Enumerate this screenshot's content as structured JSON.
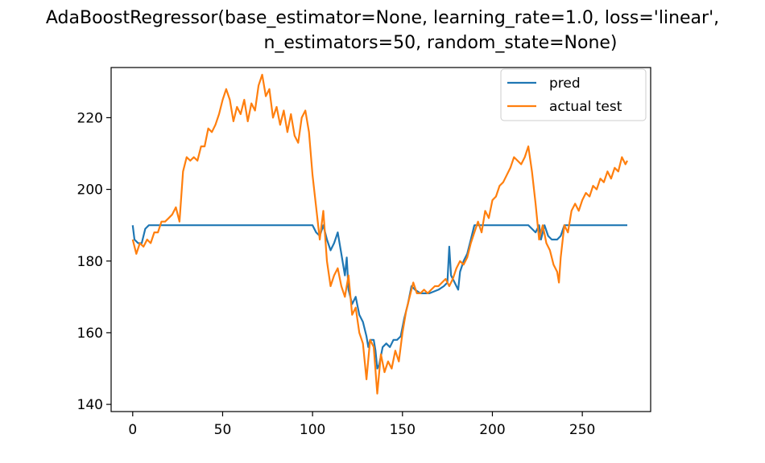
{
  "chart_data": {
    "type": "line",
    "title_line1": "AdaBoostRegressor(base_estimator=None, learning_rate=1.0, loss='linear',",
    "title_line2": "n_estimators=50, random_state=None)",
    "xlabel": "",
    "ylabel": "",
    "xlim": [
      -12,
      288
    ],
    "ylim": [
      138,
      234
    ],
    "xticks": [
      0,
      50,
      100,
      150,
      200,
      250
    ],
    "yticks": [
      140,
      160,
      180,
      200,
      220
    ],
    "grid": false,
    "legend_position": "top-right",
    "series": [
      {
        "name": "pred",
        "color": "#1f77b4",
        "points": [
          [
            0,
            190
          ],
          [
            1,
            186
          ],
          [
            3,
            185
          ],
          [
            5,
            185
          ],
          [
            7,
            189
          ],
          [
            9,
            190
          ],
          [
            12,
            190
          ],
          [
            30,
            190
          ],
          [
            60,
            190
          ],
          [
            90,
            190
          ],
          [
            100,
            190
          ],
          [
            102,
            188
          ],
          [
            104,
            187
          ],
          [
            106,
            190
          ],
          [
            108,
            186
          ],
          [
            110,
            183
          ],
          [
            112,
            185
          ],
          [
            114,
            188
          ],
          [
            116,
            182
          ],
          [
            118,
            176
          ],
          [
            119,
            181
          ],
          [
            120,
            172
          ],
          [
            122,
            168
          ],
          [
            124,
            170
          ],
          [
            126,
            165
          ],
          [
            128,
            163
          ],
          [
            130,
            159
          ],
          [
            131,
            156
          ],
          [
            132,
            158
          ],
          [
            134,
            158
          ],
          [
            135,
            155
          ],
          [
            136,
            150
          ],
          [
            137,
            151
          ],
          [
            139,
            156
          ],
          [
            141,
            157
          ],
          [
            143,
            156
          ],
          [
            145,
            158
          ],
          [
            147,
            158
          ],
          [
            149,
            159
          ],
          [
            151,
            164
          ],
          [
            153,
            168
          ],
          [
            155,
            173
          ],
          [
            157,
            172
          ],
          [
            160,
            171
          ],
          [
            165,
            171
          ],
          [
            170,
            172
          ],
          [
            173,
            173
          ],
          [
            175,
            174
          ],
          [
            176,
            184
          ],
          [
            177,
            176
          ],
          [
            179,
            174
          ],
          [
            180,
            173
          ],
          [
            181,
            172
          ],
          [
            182,
            177
          ],
          [
            184,
            180
          ],
          [
            186,
            182
          ],
          [
            188,
            186
          ],
          [
            190,
            190
          ],
          [
            200,
            190
          ],
          [
            210,
            190
          ],
          [
            220,
            190
          ],
          [
            222,
            189
          ],
          [
            224,
            188
          ],
          [
            226,
            190
          ],
          [
            227,
            186
          ],
          [
            229,
            190
          ],
          [
            231,
            187
          ],
          [
            233,
            186
          ],
          [
            236,
            186
          ],
          [
            238,
            187
          ],
          [
            240,
            190
          ],
          [
            250,
            190
          ],
          [
            260,
            190
          ],
          [
            270,
            190
          ],
          [
            275,
            190
          ]
        ]
      },
      {
        "name": "actual test",
        "color": "#ff7f0e",
        "points": [
          [
            0,
            186
          ],
          [
            2,
            182
          ],
          [
            4,
            185
          ],
          [
            6,
            184
          ],
          [
            8,
            186
          ],
          [
            10,
            185
          ],
          [
            12,
            188
          ],
          [
            14,
            188
          ],
          [
            16,
            191
          ],
          [
            18,
            191
          ],
          [
            20,
            192
          ],
          [
            22,
            193
          ],
          [
            24,
            195
          ],
          [
            26,
            191
          ],
          [
            28,
            205
          ],
          [
            30,
            209
          ],
          [
            32,
            208
          ],
          [
            34,
            209
          ],
          [
            36,
            208
          ],
          [
            38,
            212
          ],
          [
            40,
            212
          ],
          [
            42,
            217
          ],
          [
            44,
            216
          ],
          [
            46,
            218
          ],
          [
            48,
            221
          ],
          [
            50,
            225
          ],
          [
            52,
            228
          ],
          [
            54,
            225
          ],
          [
            56,
            219
          ],
          [
            58,
            223
          ],
          [
            60,
            221
          ],
          [
            62,
            225
          ],
          [
            64,
            219
          ],
          [
            66,
            224
          ],
          [
            68,
            222
          ],
          [
            70,
            229
          ],
          [
            72,
            232
          ],
          [
            74,
            226
          ],
          [
            76,
            228
          ],
          [
            78,
            220
          ],
          [
            80,
            223
          ],
          [
            82,
            218
          ],
          [
            84,
            222
          ],
          [
            86,
            216
          ],
          [
            88,
            221
          ],
          [
            90,
            215
          ],
          [
            92,
            213
          ],
          [
            94,
            220
          ],
          [
            96,
            222
          ],
          [
            98,
            216
          ],
          [
            100,
            204
          ],
          [
            102,
            195
          ],
          [
            104,
            186
          ],
          [
            106,
            194
          ],
          [
            108,
            180
          ],
          [
            110,
            173
          ],
          [
            112,
            176
          ],
          [
            114,
            178
          ],
          [
            116,
            173
          ],
          [
            118,
            170
          ],
          [
            120,
            176
          ],
          [
            122,
            165
          ],
          [
            124,
            167
          ],
          [
            126,
            160
          ],
          [
            128,
            157
          ],
          [
            130,
            147
          ],
          [
            132,
            158
          ],
          [
            134,
            156
          ],
          [
            136,
            143
          ],
          [
            138,
            154
          ],
          [
            140,
            149
          ],
          [
            142,
            152
          ],
          [
            144,
            150
          ],
          [
            146,
            155
          ],
          [
            148,
            152
          ],
          [
            150,
            160
          ],
          [
            152,
            166
          ],
          [
            154,
            170
          ],
          [
            156,
            174
          ],
          [
            158,
            171
          ],
          [
            160,
            171
          ],
          [
            162,
            172
          ],
          [
            164,
            171
          ],
          [
            166,
            172
          ],
          [
            168,
            173
          ],
          [
            170,
            173
          ],
          [
            172,
            174
          ],
          [
            174,
            175
          ],
          [
            176,
            173
          ],
          [
            178,
            175
          ],
          [
            180,
            178
          ],
          [
            182,
            180
          ],
          [
            184,
            179
          ],
          [
            186,
            181
          ],
          [
            188,
            185
          ],
          [
            190,
            188
          ],
          [
            192,
            191
          ],
          [
            194,
            188
          ],
          [
            196,
            194
          ],
          [
            198,
            192
          ],
          [
            200,
            197
          ],
          [
            202,
            198
          ],
          [
            204,
            201
          ],
          [
            206,
            202
          ],
          [
            208,
            204
          ],
          [
            210,
            206
          ],
          [
            212,
            209
          ],
          [
            214,
            208
          ],
          [
            216,
            207
          ],
          [
            218,
            209
          ],
          [
            220,
            212
          ],
          [
            222,
            205
          ],
          [
            224,
            196
          ],
          [
            226,
            186
          ],
          [
            228,
            190
          ],
          [
            230,
            185
          ],
          [
            232,
            183
          ],
          [
            234,
            179
          ],
          [
            236,
            177
          ],
          [
            237,
            174
          ],
          [
            238,
            181
          ],
          [
            240,
            190
          ],
          [
            242,
            188
          ],
          [
            244,
            194
          ],
          [
            246,
            196
          ],
          [
            248,
            194
          ],
          [
            250,
            197
          ],
          [
            252,
            199
          ],
          [
            254,
            198
          ],
          [
            256,
            201
          ],
          [
            258,
            200
          ],
          [
            260,
            203
          ],
          [
            262,
            202
          ],
          [
            264,
            205
          ],
          [
            266,
            203
          ],
          [
            268,
            206
          ],
          [
            270,
            205
          ],
          [
            272,
            209
          ],
          [
            274,
            207
          ],
          [
            275,
            208
          ]
        ]
      }
    ]
  }
}
